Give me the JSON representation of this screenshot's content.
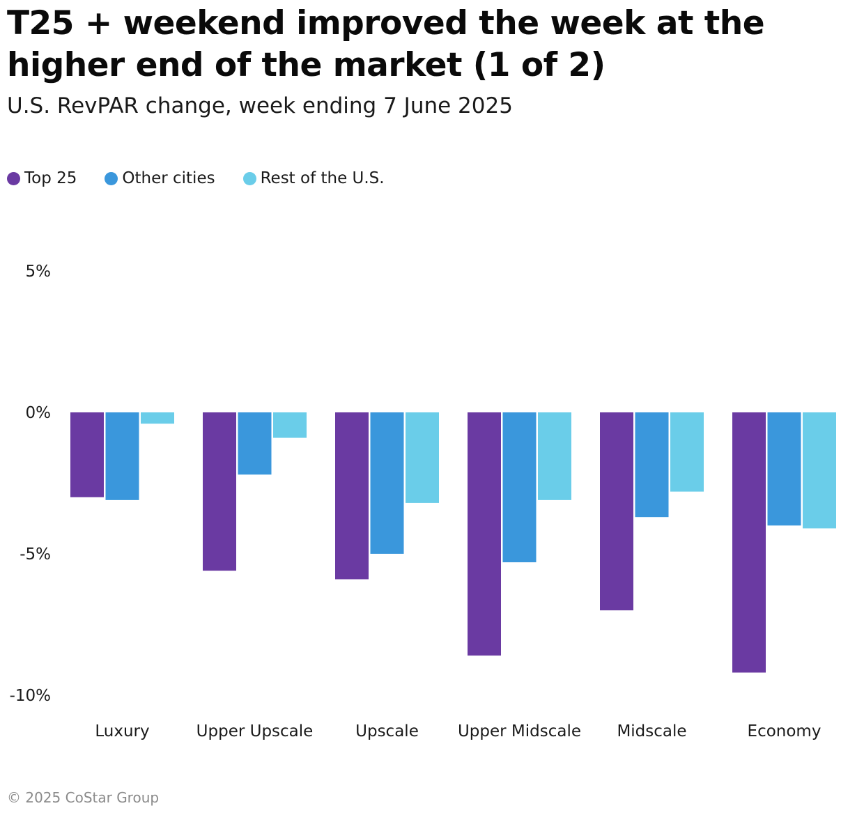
{
  "page": {
    "title": "T25 + weekend improved the week at the higher end of the market (1 of 2)",
    "subtitle": "U.S. RevPAR change, week ending 7 June 2025",
    "footer": "© 2025 CoStar Group"
  },
  "chart_data": {
    "type": "bar",
    "title": "T25 + weekend improved the week at the higher end of the market (1 of 2)",
    "subtitle": "U.S. RevPAR change, week ending 7 June 2025",
    "xlabel": "",
    "ylabel": "",
    "unit": "%",
    "categories": [
      "Luxury",
      "Upper Upscale",
      "Upscale",
      "Upper Midscale",
      "Midscale",
      "Economy"
    ],
    "series": [
      {
        "name": "Top 25",
        "color": "#6a3aa2",
        "values": [
          -3.0,
          -5.6,
          -5.9,
          -8.6,
          -7.0,
          -9.2
        ]
      },
      {
        "name": "Other cities",
        "color": "#3a97dc",
        "values": [
          -3.1,
          -2.2,
          -5.0,
          -5.3,
          -3.7,
          -4.0
        ]
      },
      {
        "name": "Rest of the U.S.",
        "color": "#6acde9",
        "values": [
          -0.4,
          -0.9,
          -3.2,
          -3.1,
          -2.8,
          -4.1
        ]
      }
    ],
    "ylim": [
      -10,
      5
    ],
    "yticks": [
      5,
      0,
      -5,
      -10
    ],
    "ytick_labels": [
      "5%",
      "0%",
      "-5%",
      "-10%"
    ],
    "grid": false,
    "legend_position": "top-left"
  }
}
